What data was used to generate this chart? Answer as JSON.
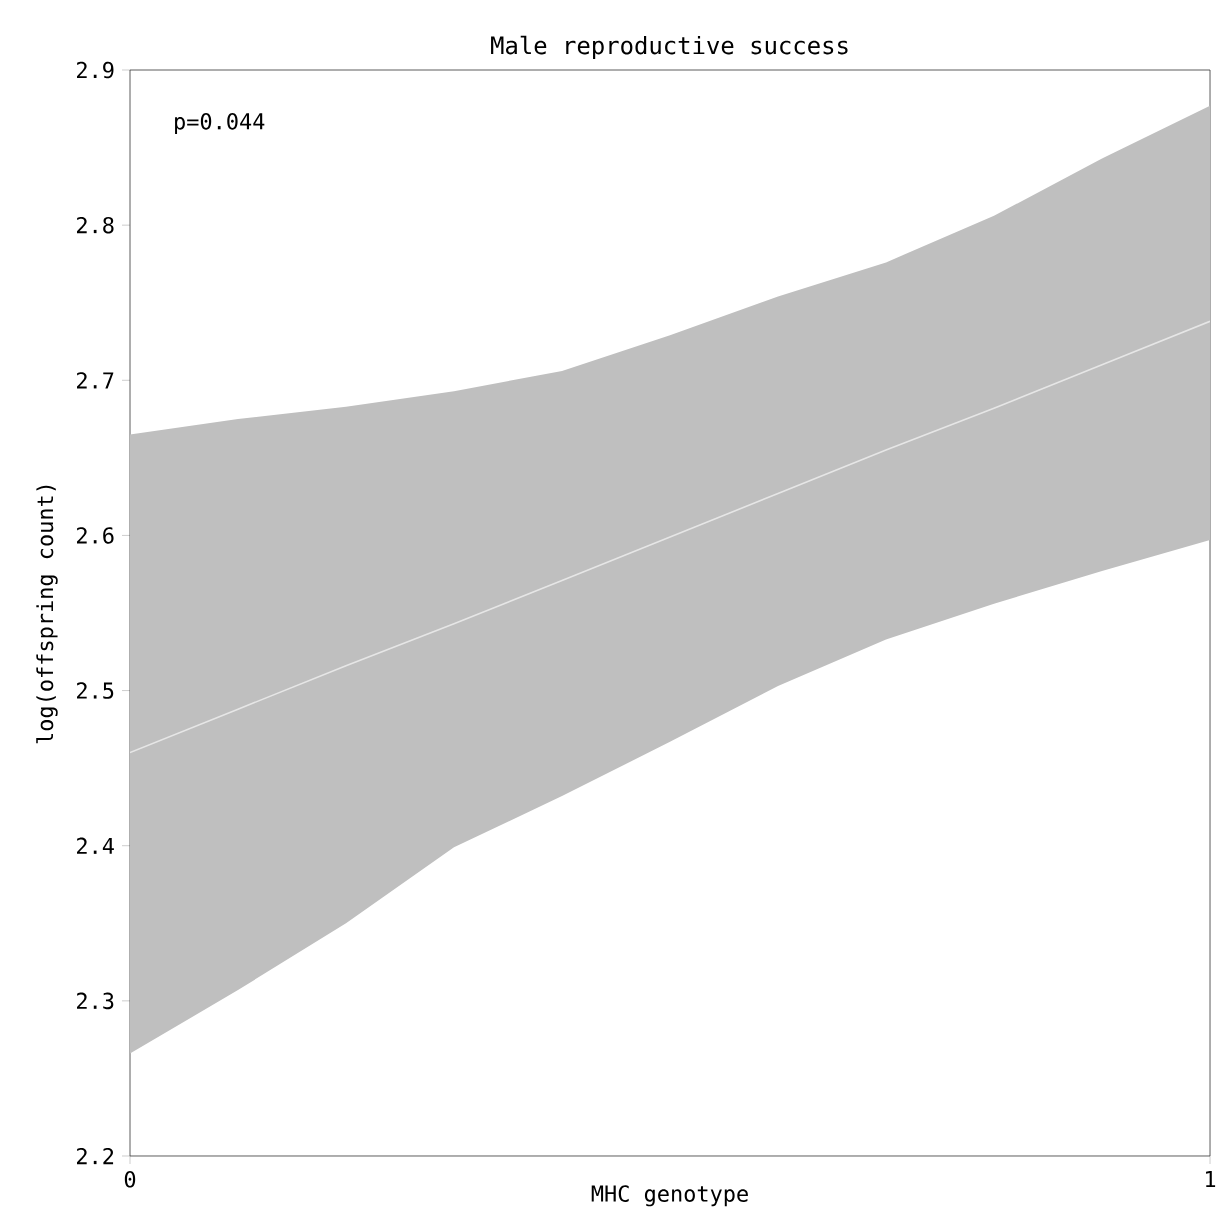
{
  "chart_data": {
    "type": "line",
    "title": "Male reproductive success",
    "xlabel": "MHC genotype",
    "ylabel": "log(offspring count)",
    "annotations": [
      "p=0.044"
    ],
    "xlim": [
      0,
      1
    ],
    "xticks": [
      0,
      1
    ],
    "ylim": [
      2.2,
      2.9
    ],
    "yticks": [
      2.2,
      2.3,
      2.4,
      2.5,
      2.6,
      2.7,
      2.8,
      2.9
    ],
    "grid": false,
    "series": [
      {
        "color": "#e6e6e6",
        "x": [
          0,
          0.1,
          0.2,
          0.3,
          0.4,
          0.5,
          0.6,
          0.7,
          0.8,
          0.9,
          1
        ],
        "values": [
          2.46,
          2.488,
          2.516,
          2.543,
          2.571,
          2.599,
          2.627,
          2.655,
          2.682,
          2.71,
          2.738
        ],
        "lower": [
          2.266,
          2.307,
          2.35,
          2.399,
          2.432,
          2.467,
          2.503,
          2.533,
          2.556,
          2.577,
          2.597
        ],
        "upper": [
          2.665,
          2.675,
          2.683,
          2.693,
          2.706,
          2.729,
          2.754,
          2.776,
          2.806,
          2.843,
          2.877
        ]
      }
    ]
  }
}
